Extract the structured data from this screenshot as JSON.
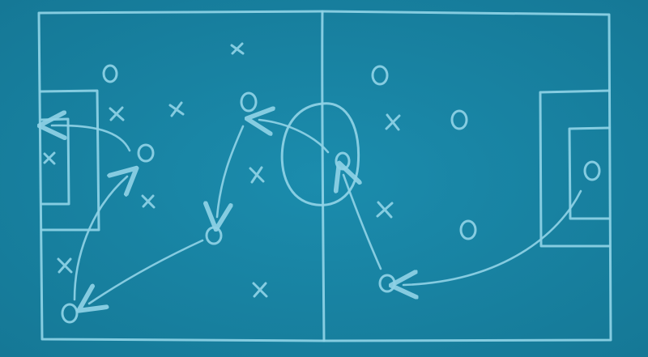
{
  "board": {
    "background_color": "#1a86a6",
    "chalk_color": "#8fd2e6"
  },
  "markers": {
    "attacker_symbol": "O",
    "defender_symbol": "X"
  }
}
